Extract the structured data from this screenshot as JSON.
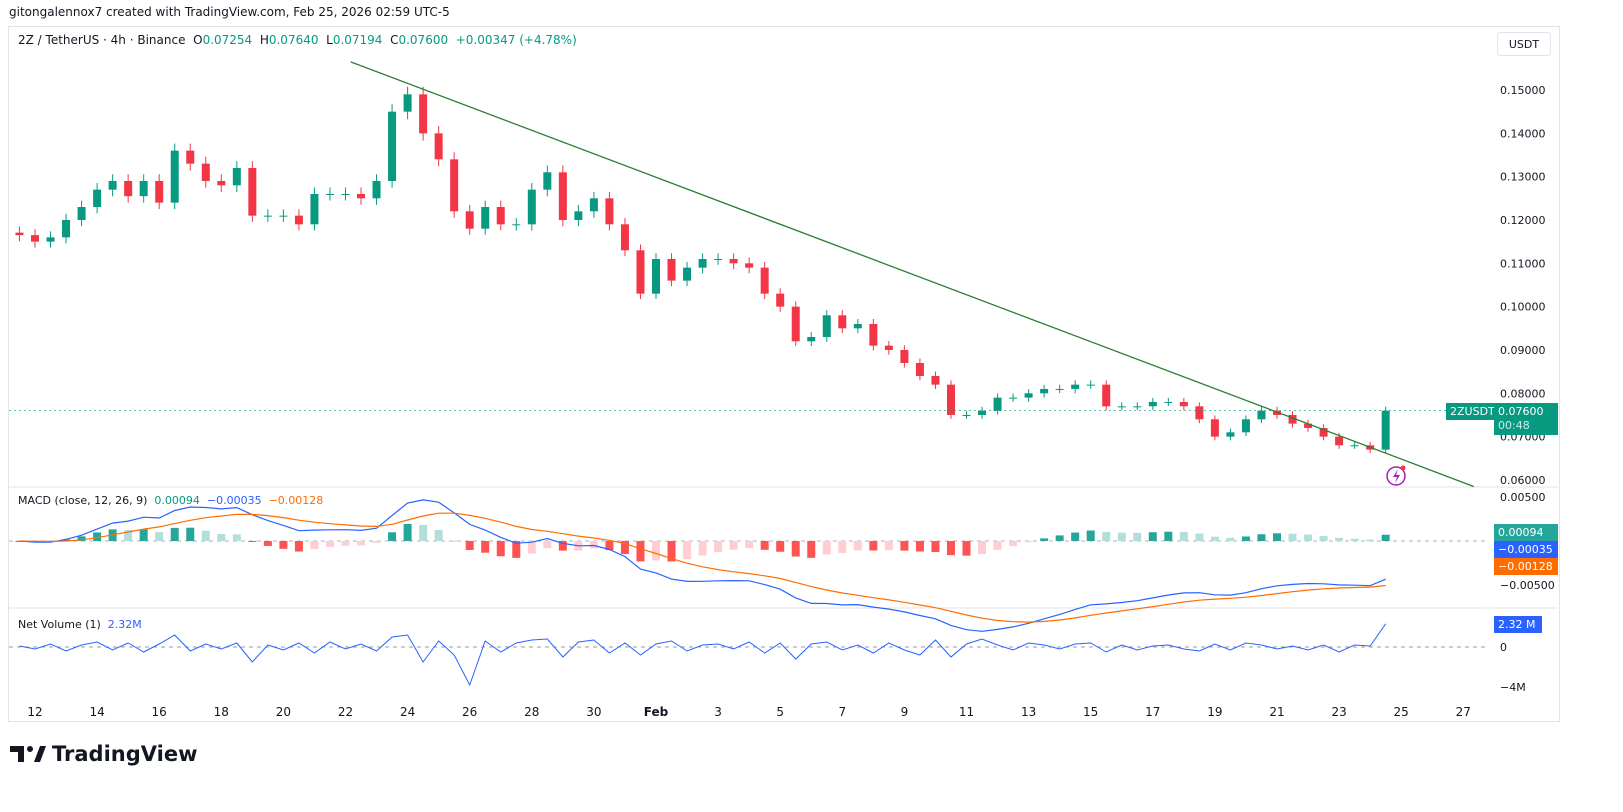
{
  "credit": "gitongalennox7 created with TradingView.com, Feb 25, 2026 02:59 UTC-5",
  "symbol": {
    "title": "2Z / TetherUS · 4h · Binance",
    "o_label": "O",
    "o": "0.07254",
    "h_label": "H",
    "h": "0.07640",
    "l_label": "L",
    "l": "0.07194",
    "c_label": "C",
    "c": "0.07600",
    "change": "+0.00347 (+4.78%)"
  },
  "currency_button": "USDT",
  "price_tag": {
    "ticker": "2ZUSDT",
    "price": "0.07600",
    "countdown": "00:48"
  },
  "macd": {
    "label": "MACD (close, 12, 26, 9)",
    "hist": "0.00094",
    "macd": "−0.00035",
    "signal": "−0.00128"
  },
  "net_volume": {
    "label": "Net Volume (1)",
    "value": "2.32M",
    "tag": "2.32 M"
  },
  "logo_text": "TradingView",
  "colors": {
    "up": "#089981",
    "down": "#f23645",
    "macd": "#2962ff",
    "signal": "#ff6d00",
    "trendline": "#2e7d32",
    "netvol": "#2962ff"
  },
  "icons": {
    "alert": "lightning-alert-icon",
    "logo": "tradingview-logo-icon"
  },
  "chart_data": {
    "type": "candlestick",
    "start": "2026-01-11T12:00:00",
    "interval_hours": 12,
    "closes": [
      0.1165,
      0.115,
      0.116,
      0.12,
      0.123,
      0.127,
      0.129,
      0.1255,
      0.129,
      0.124,
      0.136,
      0.133,
      0.129,
      0.128,
      0.132,
      0.121,
      0.121,
      0.121,
      0.119,
      0.126,
      0.126,
      0.126,
      0.125,
      0.129,
      0.145,
      0.149,
      0.14,
      0.134,
      0.122,
      0.118,
      0.123,
      0.119,
      0.119,
      0.127,
      0.131,
      0.12,
      0.122,
      0.125,
      0.119,
      0.113,
      0.103,
      0.111,
      0.106,
      0.109,
      0.111,
      0.111,
      0.11,
      0.109,
      0.103,
      0.1,
      0.092,
      0.093,
      0.098,
      0.095,
      0.096,
      0.091,
      0.09,
      0.087,
      0.084,
      0.082,
      0.075,
      0.075,
      0.076,
      0.079,
      0.079,
      0.08,
      0.081,
      0.081,
      0.082,
      0.082,
      0.077,
      0.077,
      0.077,
      0.078,
      0.078,
      0.077,
      0.074,
      0.07,
      0.071,
      0.074,
      0.076,
      0.075,
      0.073,
      0.072,
      0.07,
      0.068,
      0.068,
      0.067,
      0.076
    ],
    "net_volume_millions": [
      0.1,
      -0.2,
      0.3,
      -0.4,
      0.2,
      0.5,
      -0.3,
      0.4,
      -0.5,
      0.3,
      1.2,
      -0.4,
      0.3,
      -0.2,
      0.4,
      -1.5,
      0.2,
      -0.3,
      0.4,
      -0.6,
      0.5,
      -0.2,
      0.3,
      -0.4,
      1.0,
      1.2,
      -1.5,
      0.6,
      -0.8,
      -3.8,
      0.6,
      -0.5,
      0.4,
      0.7,
      0.8,
      -1.0,
      0.5,
      0.7,
      -0.6,
      0.4,
      -0.8,
      0.3,
      0.6,
      -0.4,
      0.2,
      0.3,
      -0.2,
      0.5,
      -0.6,
      0.4,
      -1.2,
      0.3,
      0.5,
      -0.3,
      0.2,
      -0.6,
      0.4,
      -0.3,
      -0.8,
      0.7,
      -1.0,
      0.3,
      0.8,
      0.2,
      -0.3,
      0.4,
      0.2,
      -0.2,
      0.3,
      0.4,
      -0.5,
      0.2,
      -0.3,
      0.1,
      0.2,
      -0.2,
      -0.4,
      0.3,
      -0.3,
      0.4,
      0.2,
      -0.2,
      0.1,
      -0.3,
      0.2,
      -0.5,
      0.2,
      0.1,
      2.32
    ],
    "trendline": {
      "start": [
        "2026-01-22T04:00:00",
        0.1565
      ],
      "end": [
        "2026-02-27T08:00:00",
        0.0585
      ]
    },
    "price_ticks": [
      "0.15000",
      "0.14000",
      "0.13000",
      "0.12000",
      "0.11000",
      "0.10000",
      "0.09000",
      "0.08000",
      "0.07000",
      "0.06000"
    ],
    "macd_ticks": [
      "0.00500",
      "−0.00500"
    ],
    "netvol_ticks": [
      "0",
      "−4M"
    ],
    "x_ticks": [
      {
        "label": "12",
        "date": "2026-01-12"
      },
      {
        "label": "14",
        "date": "2026-01-14"
      },
      {
        "label": "16",
        "date": "2026-01-16"
      },
      {
        "label": "18",
        "date": "2026-01-18"
      },
      {
        "label": "20",
        "date": "2026-01-20"
      },
      {
        "label": "22",
        "date": "2026-01-22"
      },
      {
        "label": "24",
        "date": "2026-01-24"
      },
      {
        "label": "26",
        "date": "2026-01-26"
      },
      {
        "label": "28",
        "date": "2026-01-28"
      },
      {
        "label": "30",
        "date": "2026-01-30"
      },
      {
        "label": "Feb",
        "date": "2026-02-01"
      },
      {
        "label": "3",
        "date": "2026-02-03"
      },
      {
        "label": "5",
        "date": "2026-02-05"
      },
      {
        "label": "7",
        "date": "2026-02-07"
      },
      {
        "label": "9",
        "date": "2026-02-09"
      },
      {
        "label": "11",
        "date": "2026-02-11"
      },
      {
        "label": "13",
        "date": "2026-02-13"
      },
      {
        "label": "15",
        "date": "2026-02-15"
      },
      {
        "label": "17",
        "date": "2026-02-17"
      },
      {
        "label": "19",
        "date": "2026-02-19"
      },
      {
        "label": "21",
        "date": "2026-02-21"
      },
      {
        "label": "23",
        "date": "2026-02-23"
      },
      {
        "label": "25",
        "date": "2026-02-25"
      },
      {
        "label": "27",
        "date": "2026-02-27"
      }
    ],
    "price_ylim": [
      0.06,
      0.15
    ],
    "grid": false
  }
}
